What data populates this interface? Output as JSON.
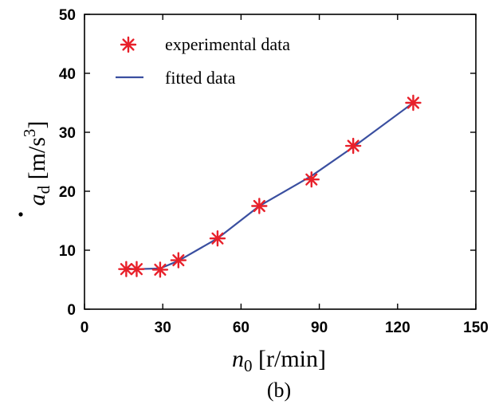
{
  "chart_data": {
    "type": "line",
    "xlabel": {
      "var": "n",
      "sub": "0",
      "unit": " [r/min]"
    },
    "ylabel": {
      "var": "a",
      "sub": "d",
      "unit": " [m/s",
      "unit_sup": "3",
      "unit_end": "]",
      "accent": "dot"
    },
    "caption": "(b)",
    "xlim": [
      0,
      150
    ],
    "ylim": [
      0,
      50
    ],
    "xticks": [
      0,
      30,
      60,
      90,
      120,
      150
    ],
    "yticks": [
      0,
      10,
      20,
      30,
      40,
      50
    ],
    "legend_position": "top-left",
    "grid": false,
    "series": [
      {
        "name": "experimental data",
        "marker": "asterisk",
        "color": "#e8202a",
        "x": [
          16,
          20,
          29,
          36,
          51,
          67,
          87,
          103,
          126
        ],
        "y": [
          6.8,
          6.8,
          6.7,
          8.3,
          12.0,
          17.5,
          22.0,
          27.7,
          35.0
        ]
      },
      {
        "name": "fitted data",
        "marker": "none",
        "color": "#3a4fa0",
        "x": [
          16,
          20,
          29,
          36,
          51,
          67,
          87,
          103,
          126
        ],
        "y": [
          6.9,
          6.8,
          6.9,
          8.2,
          12.0,
          17.5,
          22.6,
          27.5,
          35.0
        ]
      }
    ]
  }
}
